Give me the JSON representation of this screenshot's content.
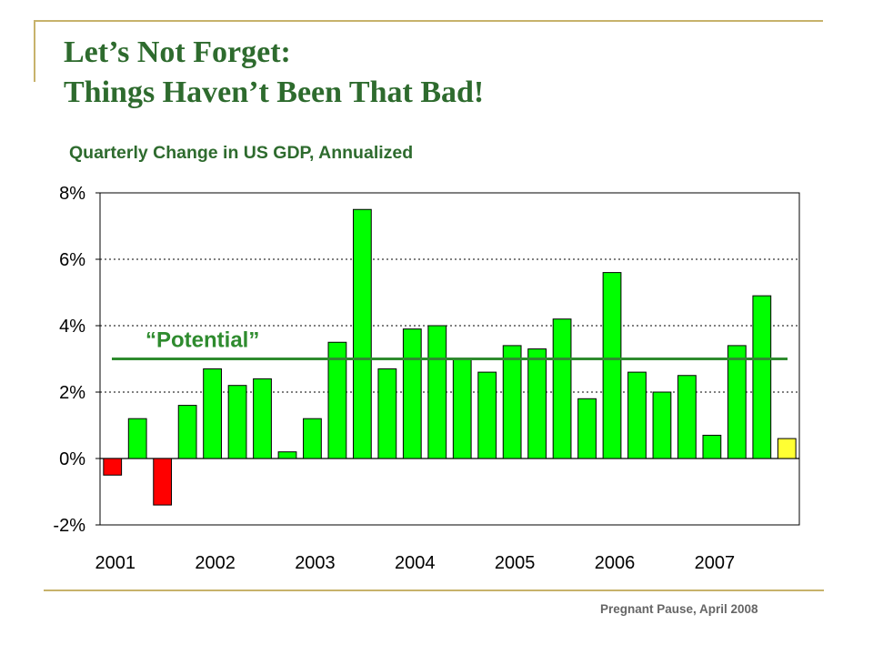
{
  "slide": {
    "title_line1": "Let’s Not Forget:",
    "title_line2": "Things Haven’t Been That Bad!",
    "footer": "Pregnant Pause, April 2008"
  },
  "colors": {
    "accent_rule": "#c7b26b",
    "title": "#2e6b2e",
    "positive_bar": "#00ff00",
    "negative_bar": "#ff0000",
    "latest_bar": "#ffff33",
    "potential_line": "#2e8b2e"
  },
  "chart_data": {
    "type": "bar",
    "title": "Quarterly Change in US GDP, Annualized",
    "xlabel": "",
    "ylabel": "",
    "ylim": [
      -2,
      8
    ],
    "yticks": [
      8,
      6,
      4,
      2,
      0,
      -2
    ],
    "ytick_labels": [
      "8%",
      "6%",
      "4%",
      "2%",
      "0%",
      "-2%"
    ],
    "grid": "horizontal dotted",
    "x_year_labels": [
      "2001",
      "2002",
      "2003",
      "2004",
      "2005",
      "2006",
      "2007"
    ],
    "categories": [
      "2001 Q1",
      "2001 Q2",
      "2001 Q3",
      "2001 Q4",
      "2002 Q1",
      "2002 Q2",
      "2002 Q3",
      "2002 Q4",
      "2003 Q1",
      "2003 Q2",
      "2003 Q3",
      "2003 Q4",
      "2004 Q1",
      "2004 Q2",
      "2004 Q3",
      "2004 Q4",
      "2005 Q1",
      "2005 Q2",
      "2005 Q3",
      "2005 Q4",
      "2006 Q1",
      "2006 Q2",
      "2006 Q3",
      "2006 Q4",
      "2007 Q1",
      "2007 Q2",
      "2007 Q3",
      "2007 Q4"
    ],
    "values": [
      -0.5,
      1.2,
      -1.4,
      1.6,
      2.7,
      2.2,
      2.4,
      0.2,
      1.2,
      3.5,
      7.5,
      2.7,
      3.9,
      4.0,
      3.0,
      2.6,
      3.4,
      3.3,
      4.2,
      1.8,
      5.6,
      2.6,
      2.0,
      2.5,
      0.7,
      3.4,
      4.9,
      0.6
    ],
    "potential_level": 3.0,
    "annotation": "“Potential”"
  }
}
